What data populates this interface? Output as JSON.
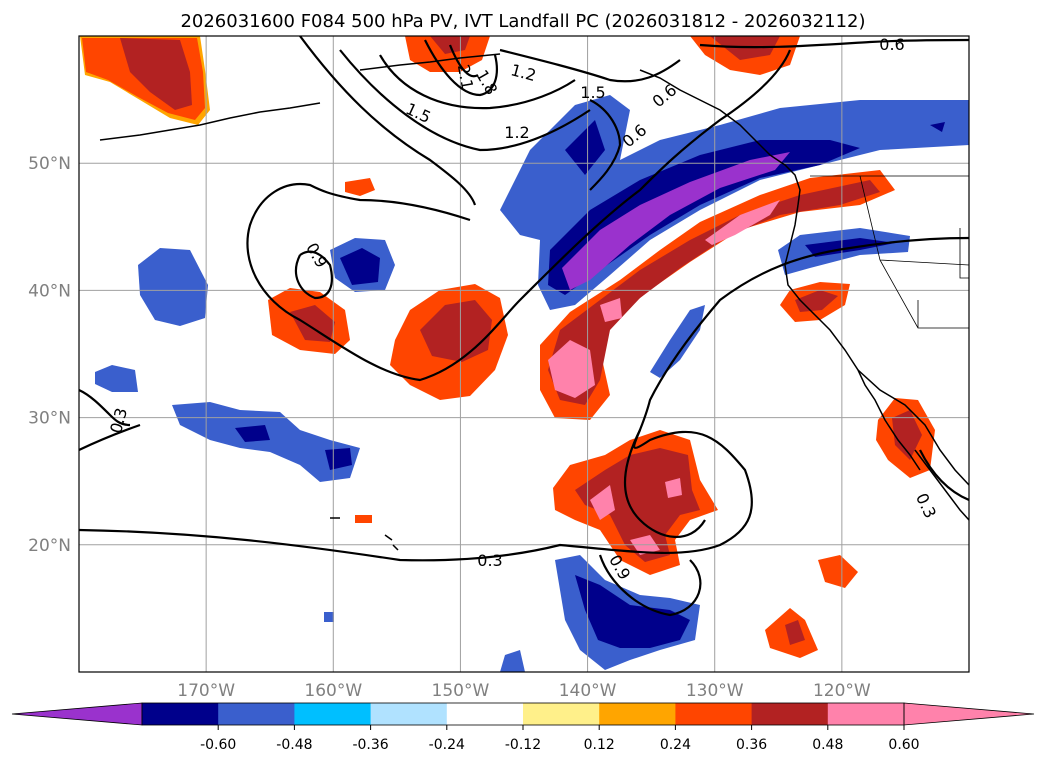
{
  "title": "2026031600 F084 500 hPa PV, IVT Landfall PC (2026031812 - 2026032112)",
  "map": {
    "lon_range": [
      -180,
      -110
    ],
    "lat_range": [
      10,
      60
    ],
    "lat_ticks": [
      {
        "value": 50,
        "label": "50°N"
      },
      {
        "value": 40,
        "label": "40°N"
      },
      {
        "value": 30,
        "label": "30°N"
      },
      {
        "value": 20,
        "label": "20°N"
      }
    ],
    "lon_ticks": [
      {
        "value": -170,
        "label": "170°W"
      },
      {
        "value": -160,
        "label": "160°W"
      },
      {
        "value": -150,
        "label": "150°W"
      },
      {
        "value": -140,
        "label": "140°W"
      },
      {
        "value": -130,
        "label": "130°W"
      },
      {
        "value": -120,
        "label": "120°W"
      }
    ],
    "pv_contour_labels": [
      "0.6",
      "1.2",
      "1.5",
      "1.8",
      "2.1",
      "1.2",
      "1.5",
      "0.6",
      "0.6",
      "0.9",
      "0.3",
      "0.3",
      "0.3",
      "0.9"
    ]
  },
  "colorbar": {
    "tick_labels": [
      "-0.60",
      "-0.48",
      "-0.36",
      "-0.24",
      "-0.12",
      "0.12",
      "0.24",
      "0.36",
      "0.48",
      "0.60"
    ],
    "colors": [
      "#9a32cd",
      "#00008b",
      "#3a5fcd",
      "#00bfff",
      "#b0e2ff",
      "#ffffff",
      "#fff08a",
      "#ffa500",
      "#ff4500",
      "#b22222",
      "#ff82ab",
      "#ff82ab"
    ]
  },
  "colors": {
    "purple": "#9a32cd",
    "navy": "#00008b",
    "royal": "#3a5fcd",
    "cyan": "#00bfff",
    "lightblue": "#b0e2ff",
    "yellow": "#fff08a",
    "orange": "#ffa500",
    "redorange": "#ff4500",
    "firebrick": "#b22222",
    "pink": "#ff82ab"
  }
}
